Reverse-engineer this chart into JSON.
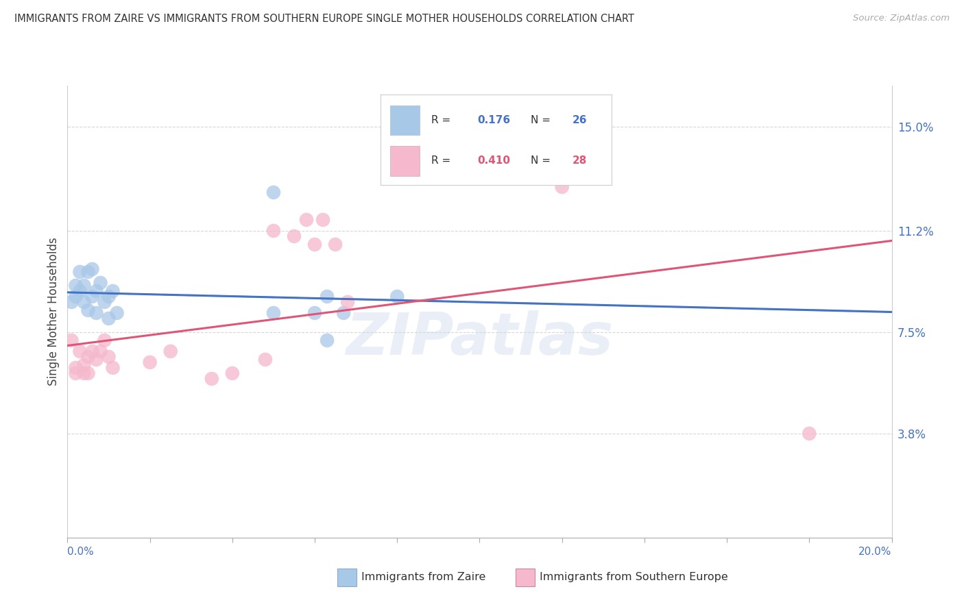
{
  "title": "IMMIGRANTS FROM ZAIRE VS IMMIGRANTS FROM SOUTHERN EUROPE SINGLE MOTHER HOUSEHOLDS CORRELATION CHART",
  "source": "Source: ZipAtlas.com",
  "ylabel": "Single Mother Households",
  "xlim": [
    0.0,
    0.2
  ],
  "ylim": [
    0.0,
    0.165
  ],
  "background_color": "#ffffff",
  "grid_color": "#cccccc",
  "zaire_color": "#a8c8e8",
  "southern_europe_color": "#f5b8cc",
  "zaire_line_color": "#4472c4",
  "southern_europe_line_color": "#e05575",
  "zaire_dashed_color": "#90b8e0",
  "ytick_values": [
    0.038,
    0.075,
    0.112,
    0.15
  ],
  "ytick_labels": [
    "3.8%",
    "7.5%",
    "11.2%",
    "15.0%"
  ],
  "bottom_label_zaire": "Immigrants from Zaire",
  "bottom_label_se": "Immigrants from Southern Europe",
  "zaire_x": [
    0.001,
    0.002,
    0.002,
    0.003,
    0.003,
    0.004,
    0.004,
    0.005,
    0.005,
    0.006,
    0.006,
    0.007,
    0.007,
    0.008,
    0.009,
    0.01,
    0.01,
    0.011,
    0.012,
    0.05,
    0.06,
    0.063,
    0.067,
    0.063,
    0.05,
    0.08
  ],
  "zaire_y": [
    0.086,
    0.092,
    0.088,
    0.097,
    0.09,
    0.092,
    0.086,
    0.097,
    0.083,
    0.098,
    0.088,
    0.09,
    0.082,
    0.093,
    0.086,
    0.088,
    0.08,
    0.09,
    0.082,
    0.126,
    0.082,
    0.088,
    0.082,
    0.072,
    0.082,
    0.088
  ],
  "se_x": [
    0.001,
    0.002,
    0.002,
    0.003,
    0.004,
    0.004,
    0.005,
    0.005,
    0.006,
    0.007,
    0.008,
    0.009,
    0.01,
    0.011,
    0.02,
    0.025,
    0.035,
    0.04,
    0.048,
    0.05,
    0.055,
    0.058,
    0.06,
    0.062,
    0.065,
    0.068,
    0.12,
    0.18
  ],
  "se_y": [
    0.072,
    0.062,
    0.06,
    0.068,
    0.063,
    0.06,
    0.066,
    0.06,
    0.068,
    0.065,
    0.068,
    0.072,
    0.066,
    0.062,
    0.064,
    0.068,
    0.058,
    0.06,
    0.065,
    0.112,
    0.11,
    0.116,
    0.107,
    0.116,
    0.107,
    0.086,
    0.128,
    0.038
  ]
}
